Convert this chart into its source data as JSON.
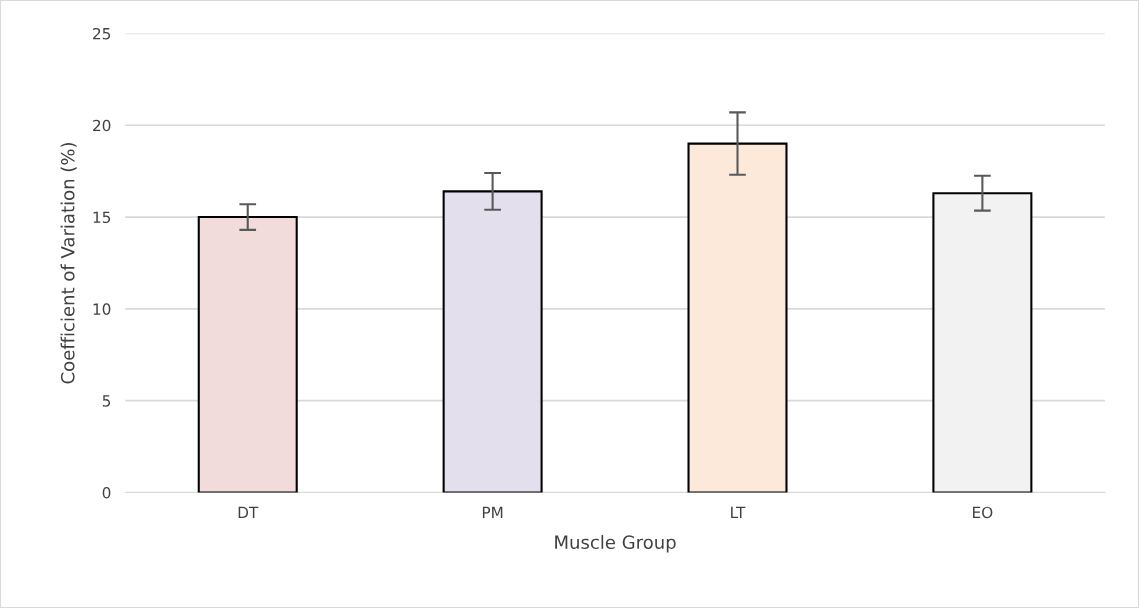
{
  "chart_data": {
    "type": "bar",
    "xlabel": "Muscle Group",
    "ylabel": "Coefficient of Variation (%)",
    "categories": [
      "DT",
      "PM",
      "LT",
      "EO"
    ],
    "values": [
      15.0,
      16.4,
      19.0,
      16.3
    ],
    "errors": [
      0.7,
      1.0,
      1.7,
      0.95
    ],
    "colors": [
      "#f2dcdb",
      "#e4dfec",
      "#fde9d9",
      "#f2f2f2"
    ],
    "ylim": [
      0,
      25
    ],
    "yticks": [
      0,
      5,
      10,
      15,
      20,
      25
    ],
    "grid": "y",
    "legend": false
  }
}
